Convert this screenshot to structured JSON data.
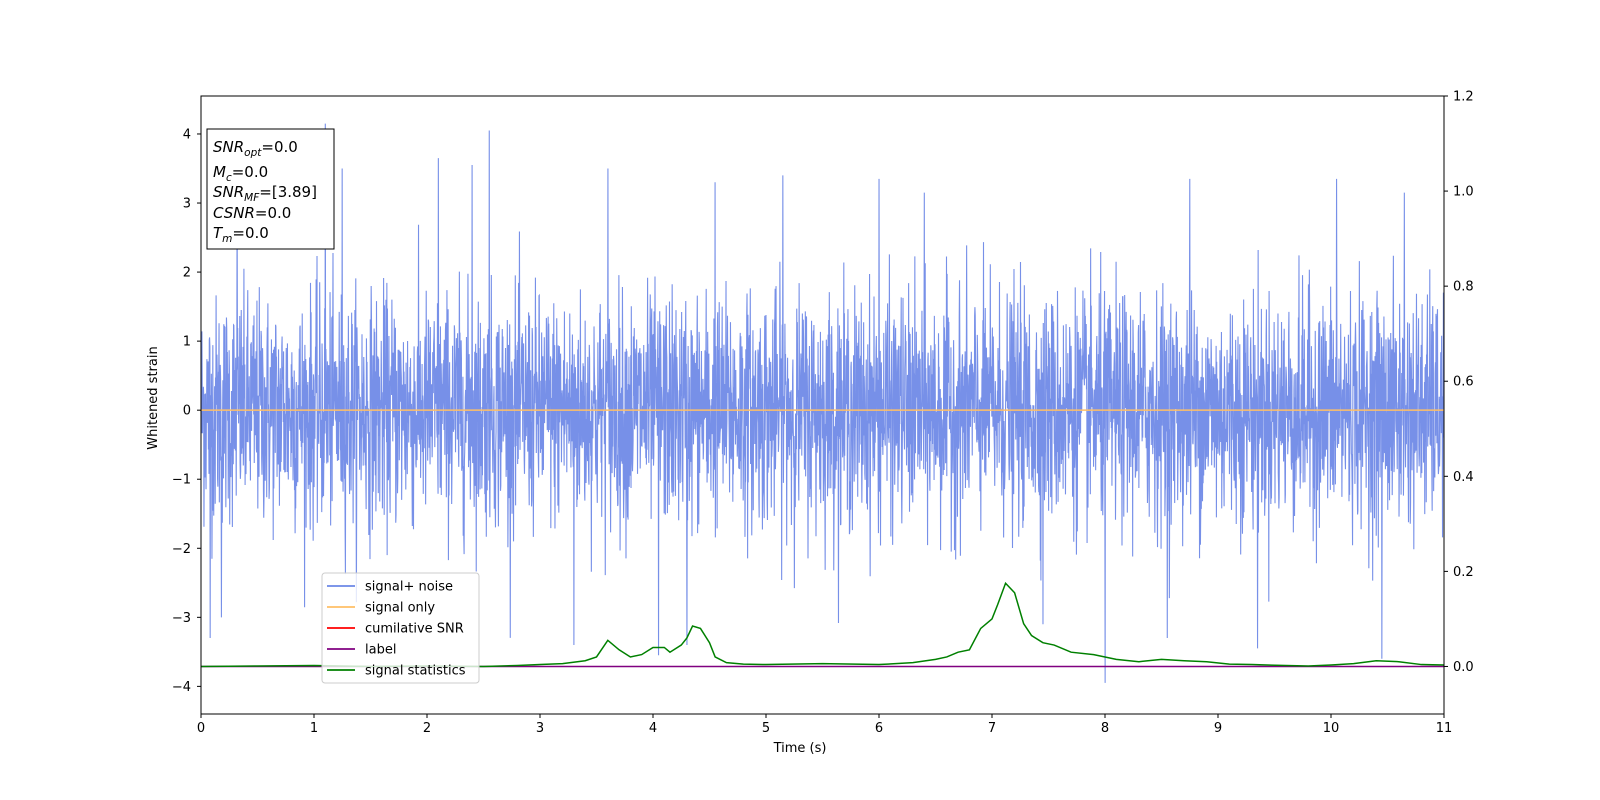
{
  "chart_data": {
    "type": "line",
    "xlabel": "Time (s)",
    "ylabel": "Whitened strain",
    "xlim": [
      0,
      11
    ],
    "ylim": [
      -4.4,
      4.55
    ],
    "y2lim": [
      -0.1,
      1.2
    ],
    "x_ticks": [
      0,
      1,
      2,
      3,
      4,
      5,
      6,
      7,
      8,
      9,
      10,
      11
    ],
    "y_ticks": [
      -4,
      -3,
      -2,
      -1,
      0,
      1,
      2,
      3,
      4
    ],
    "y2_ticks": [
      0.0,
      0.2,
      0.4,
      0.6,
      0.8,
      1.0,
      1.2
    ],
    "grid": false,
    "legend_position": "lower-left",
    "series": [
      {
        "name": "signal+ noise",
        "axis": "left",
        "color": "#6b87e6",
        "noise_std": 0.82,
        "peaks": [
          {
            "x": 0.08,
            "y": -3.3
          },
          {
            "x": 0.18,
            "y": -3.0
          },
          {
            "x": 0.32,
            "y": 3.3
          },
          {
            "x": 1.1,
            "y": 4.15
          },
          {
            "x": 1.25,
            "y": 3.5
          },
          {
            "x": 2.1,
            "y": 3.65
          },
          {
            "x": 2.55,
            "y": 4.05
          },
          {
            "x": 2.4,
            "y": 3.55
          },
          {
            "x": 3.3,
            "y": -3.4
          },
          {
            "x": 3.6,
            "y": 3.5
          },
          {
            "x": 4.05,
            "y": -3.55
          },
          {
            "x": 4.3,
            "y": -3.4
          },
          {
            "x": 4.55,
            "y": 3.3
          },
          {
            "x": 5.15,
            "y": 3.4
          },
          {
            "x": 6.0,
            "y": 3.35
          },
          {
            "x": 6.4,
            "y": 3.15
          },
          {
            "x": 7.45,
            "y": -3.1
          },
          {
            "x": 8.0,
            "y": -3.95
          },
          {
            "x": 8.55,
            "y": -3.3
          },
          {
            "x": 8.75,
            "y": 3.35
          },
          {
            "x": 9.35,
            "y": -3.45
          },
          {
            "x": 10.05,
            "y": 3.35
          },
          {
            "x": 10.45,
            "y": -3.6
          },
          {
            "x": 10.65,
            "y": 3.15
          }
        ]
      },
      {
        "name": "signal only",
        "axis": "left",
        "color": "#ffbf66",
        "points": [
          [
            0,
            0
          ],
          [
            11,
            0
          ]
        ]
      },
      {
        "name": "cumilative SNR",
        "axis": "right",
        "color": "#ff0000",
        "points": []
      },
      {
        "name": "label",
        "axis": "right",
        "color": "#800080",
        "points": [
          [
            0,
            0
          ],
          [
            11,
            0
          ]
        ]
      },
      {
        "name": "signal statistics",
        "axis": "right",
        "color": "#008000",
        "points": [
          [
            0,
            0.0
          ],
          [
            0.5,
            0.001
          ],
          [
            1,
            0.002
          ],
          [
            1.5,
            0.0
          ],
          [
            2,
            0.001
          ],
          [
            2.5,
            0.0
          ],
          [
            2.8,
            0.002
          ],
          [
            3.0,
            0.004
          ],
          [
            3.2,
            0.006
          ],
          [
            3.4,
            0.012
          ],
          [
            3.5,
            0.02
          ],
          [
            3.6,
            0.055
          ],
          [
            3.7,
            0.035
          ],
          [
            3.8,
            0.02
          ],
          [
            3.9,
            0.025
          ],
          [
            4.0,
            0.04
          ],
          [
            4.1,
            0.04
          ],
          [
            4.15,
            0.03
          ],
          [
            4.25,
            0.045
          ],
          [
            4.3,
            0.06
          ],
          [
            4.35,
            0.085
          ],
          [
            4.42,
            0.08
          ],
          [
            4.5,
            0.05
          ],
          [
            4.55,
            0.02
          ],
          [
            4.65,
            0.008
          ],
          [
            4.8,
            0.005
          ],
          [
            5.0,
            0.004
          ],
          [
            5.5,
            0.006
          ],
          [
            6.0,
            0.004
          ],
          [
            6.3,
            0.008
          ],
          [
            6.5,
            0.015
          ],
          [
            6.6,
            0.02
          ],
          [
            6.7,
            0.03
          ],
          [
            6.8,
            0.035
          ],
          [
            6.9,
            0.08
          ],
          [
            7.0,
            0.1
          ],
          [
            7.05,
            0.13
          ],
          [
            7.12,
            0.175
          ],
          [
            7.2,
            0.155
          ],
          [
            7.28,
            0.09
          ],
          [
            7.35,
            0.065
          ],
          [
            7.45,
            0.05
          ],
          [
            7.55,
            0.045
          ],
          [
            7.7,
            0.03
          ],
          [
            7.9,
            0.025
          ],
          [
            8.1,
            0.015
          ],
          [
            8.3,
            0.01
          ],
          [
            8.5,
            0.015
          ],
          [
            8.7,
            0.012
          ],
          [
            8.9,
            0.01
          ],
          [
            9.1,
            0.005
          ],
          [
            9.3,
            0.004
          ],
          [
            9.6,
            0.002
          ],
          [
            9.8,
            0.001
          ],
          [
            10.0,
            0.003
          ],
          [
            10.2,
            0.006
          ],
          [
            10.4,
            0.012
          ],
          [
            10.6,
            0.01
          ],
          [
            10.8,
            0.004
          ],
          [
            11.0,
            0.003
          ]
        ]
      }
    ],
    "info_box": {
      "lines": [
        {
          "main": "SNR",
          "sub": "opt",
          "value": "=0.0"
        },
        {
          "main": "M",
          "sub": "c",
          "value": "=0.0"
        },
        {
          "main": "SNR",
          "sub": "MF",
          "value": "=[3.89]"
        },
        {
          "main": "CSNR",
          "sub": "",
          "value": "=0.0"
        },
        {
          "main": "T",
          "sub": "m",
          "value": "=0.0"
        }
      ]
    }
  }
}
